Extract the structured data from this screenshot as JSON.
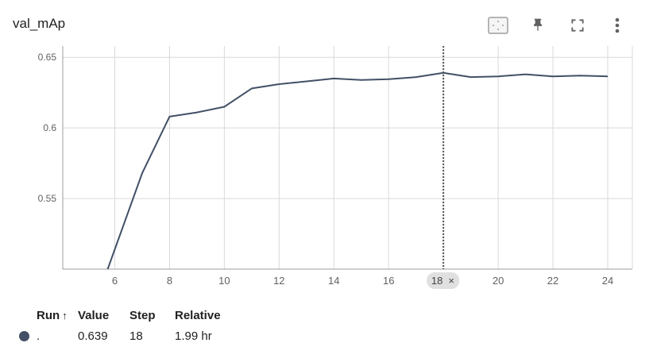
{
  "title": "val_mAp",
  "toolbar": {
    "fit_icon": "fit-to-domain-icon",
    "pin_icon": "pin-icon",
    "fullscreen_icon": "fullscreen-icon",
    "menu_icon": "more-vert-icon"
  },
  "colors": {
    "series": "#425066",
    "grid": "#d9d9d9",
    "axis_text": "#616161",
    "hover_chip": "#e0e0e0"
  },
  "chart_data": {
    "type": "line",
    "title": "val_mAp",
    "xlabel": "",
    "ylabel": "",
    "xlim": [
      4.1,
      24.9
    ],
    "ylim": [
      0.5,
      0.658
    ],
    "x_ticks": [
      6,
      8,
      10,
      12,
      14,
      16,
      18,
      20,
      22,
      24
    ],
    "y_ticks": [
      0.55,
      0.6,
      0.65
    ],
    "y_tick_labels": [
      "0.55",
      "0.6",
      "0.65"
    ],
    "grid": true,
    "series": [
      {
        "name": ".",
        "x": [
          5,
          6,
          7,
          8,
          9,
          10,
          11,
          12,
          13,
          14,
          15,
          16,
          17,
          18,
          19,
          20,
          21,
          22,
          23,
          24
        ],
        "y": [
          0.46,
          0.514,
          0.568,
          0.608,
          0.611,
          0.615,
          0.628,
          0.631,
          0.633,
          0.635,
          0.634,
          0.6345,
          0.636,
          0.639,
          0.636,
          0.6365,
          0.638,
          0.6365,
          0.637,
          0.6365
        ]
      }
    ],
    "hover": {
      "step": 18,
      "label": "18",
      "close": "×"
    }
  },
  "table": {
    "headers": {
      "run": "Run",
      "sort_arrow": "↑",
      "value": "Value",
      "step": "Step",
      "relative": "Relative"
    },
    "rows": [
      {
        "run": ".",
        "value": "0.639",
        "step": "18",
        "relative": "1.99 hr"
      }
    ]
  }
}
